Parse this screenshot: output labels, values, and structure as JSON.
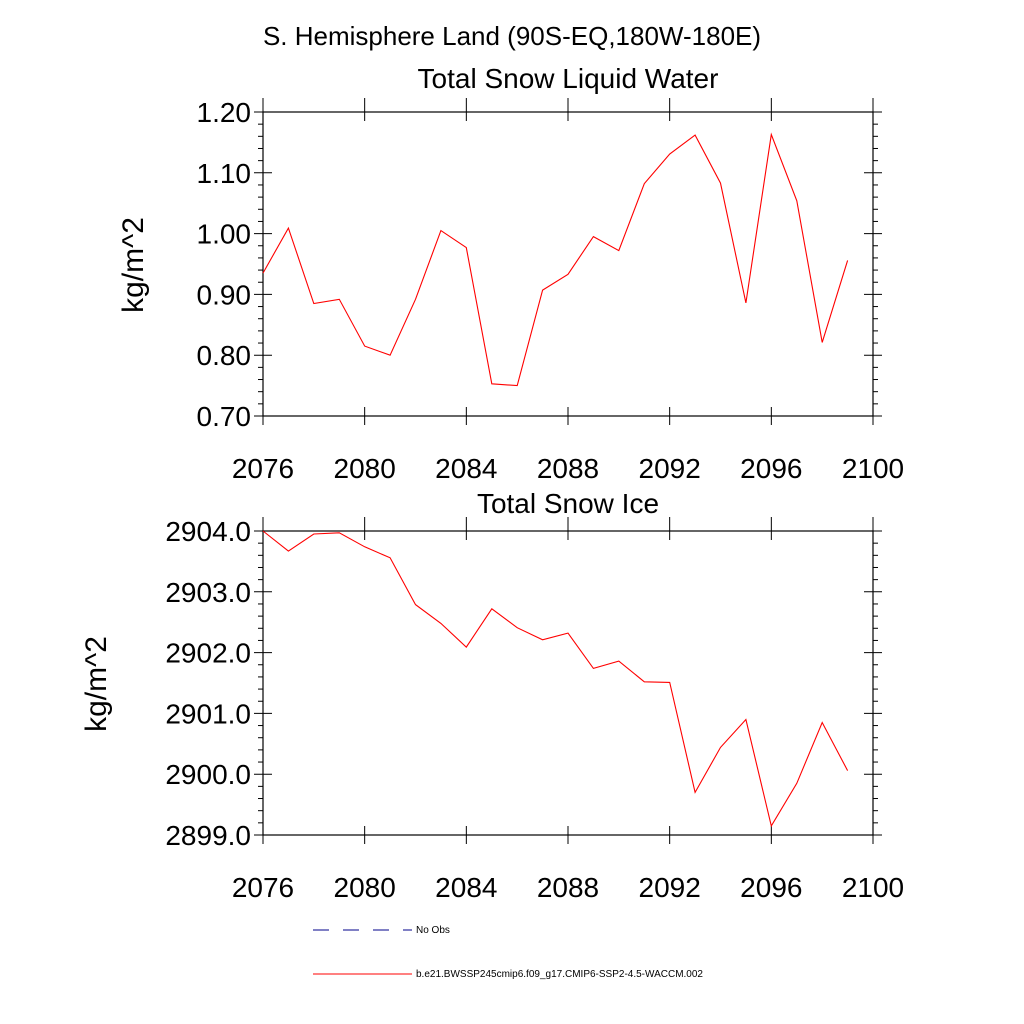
{
  "figure": {
    "title": "S. Hemisphere Land (90S-EQ,180W-180E)"
  },
  "chart_data": [
    {
      "type": "line",
      "title": "Total Snow Liquid Water",
      "xlabel": "",
      "ylabel": "kg/m^2",
      "xlim": [
        2076,
        2100
      ],
      "ylim": [
        0.7,
        1.2
      ],
      "xticks": [
        2076,
        2080,
        2084,
        2088,
        2092,
        2096,
        2100
      ],
      "xtick_labels": [
        "2076",
        "2080",
        "2084",
        "2088",
        "2092",
        "2096",
        "2100"
      ],
      "yticks": [
        0.7,
        0.8,
        0.9,
        1.0,
        1.1,
        1.2
      ],
      "ytick_labels": [
        "0.70",
        "0.80",
        "0.90",
        "1.00",
        "1.10",
        "1.20"
      ],
      "grid": false,
      "x": [
        2076,
        2077,
        2078,
        2079,
        2080,
        2081,
        2082,
        2083,
        2084,
        2085,
        2086,
        2087,
        2088,
        2089,
        2090,
        2091,
        2092,
        2093,
        2094,
        2095,
        2096,
        2097,
        2098,
        2099
      ],
      "series": [
        {
          "color": "#ff0000",
          "values": [
            0.935,
            1.009,
            0.885,
            0.892,
            0.815,
            0.8,
            0.892,
            1.005,
            0.977,
            0.753,
            0.75,
            0.907,
            0.933,
            0.995,
            0.972,
            1.082,
            1.131,
            1.162,
            1.083,
            0.886,
            1.163,
            1.054,
            0.821,
            0.956
          ]
        }
      ]
    },
    {
      "type": "line",
      "title": "Total Snow Ice",
      "xlabel": "",
      "ylabel": "kg/m^2",
      "xlim": [
        2076,
        2100
      ],
      "ylim": [
        2899.0,
        2904.0
      ],
      "xticks": [
        2076,
        2080,
        2084,
        2088,
        2092,
        2096,
        2100
      ],
      "xtick_labels": [
        "2076",
        "2080",
        "2084",
        "2088",
        "2092",
        "2096",
        "2100"
      ],
      "yticks": [
        2899.0,
        2900.0,
        2901.0,
        2902.0,
        2903.0,
        2904.0
      ],
      "ytick_labels": [
        "2899.0",
        "2900.0",
        "2901.0",
        "2902.0",
        "2903.0",
        "2904.0"
      ],
      "grid": false,
      "x": [
        2076,
        2077,
        2078,
        2079,
        2080,
        2081,
        2082,
        2083,
        2084,
        2085,
        2086,
        2087,
        2088,
        2089,
        2090,
        2091,
        2092,
        2093,
        2094,
        2095,
        2096,
        2097,
        2098,
        2099
      ],
      "series": [
        {
          "color": "#ff0000",
          "values": [
            2904.0,
            2903.67,
            2903.95,
            2903.97,
            2903.74,
            2903.56,
            2902.79,
            2902.48,
            2902.09,
            2902.72,
            2902.41,
            2902.21,
            2902.32,
            2901.74,
            2901.86,
            2901.52,
            2901.51,
            2899.7,
            2900.44,
            2900.9,
            2899.15,
            2899.85,
            2900.85,
            2900.06
          ]
        }
      ]
    }
  ],
  "legend": {
    "placement": "bottom",
    "items": [
      {
        "label": "No Obs",
        "color": "#00008b",
        "style": "dashed"
      },
      {
        "label": "b.e21.BWSSP245cmip6.f09_g17.CMIP6-SSP2-4.5-WACCM.002",
        "color": "#ff0000",
        "style": "solid"
      }
    ]
  }
}
